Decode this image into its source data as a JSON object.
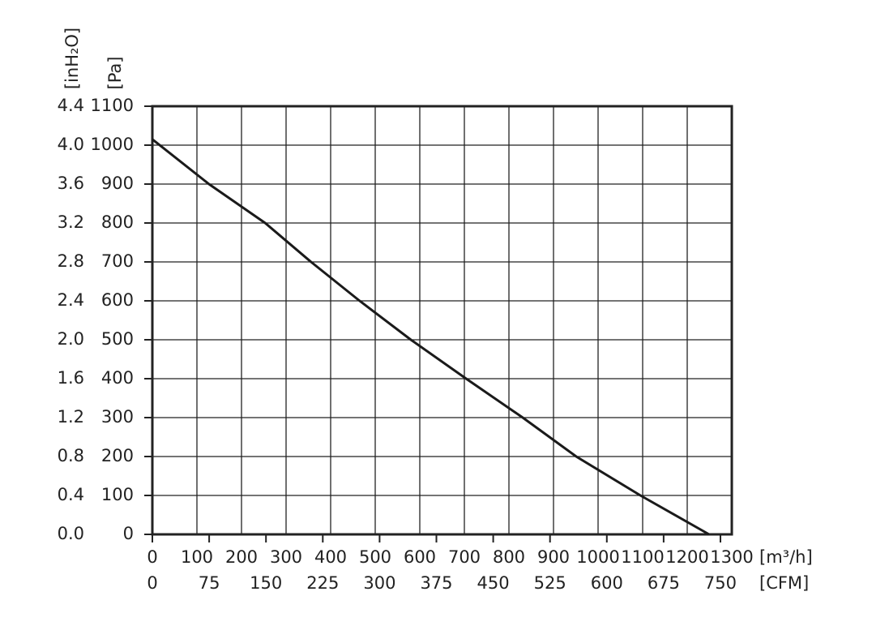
{
  "chart_data": {
    "type": "line",
    "x": [
      0,
      127,
      253,
      356,
      465,
      580,
      704,
      831,
      951,
      1095,
      1249
    ],
    "series": [
      {
        "color": "#1a1a1a",
        "values": [
          1015,
          900,
          800,
          700,
          600,
          500,
          400,
          300,
          200,
          100,
          0
        ]
      }
    ],
    "xlim": [
      0,
      1300
    ],
    "xticks": [
      0,
      100,
      200,
      300,
      400,
      500,
      600,
      700,
      800,
      900,
      1000,
      1100,
      1200,
      1300
    ],
    "xlabel": "[m³/h]",
    "x2lim": [
      0,
      765
    ],
    "x2ticks": [
      0,
      75,
      150,
      225,
      300,
      375,
      450,
      525,
      600,
      675,
      750
    ],
    "x2label": "[CFM]",
    "ylim": [
      0,
      1100
    ],
    "yticks": [
      0,
      100,
      200,
      300,
      400,
      500,
      600,
      700,
      800,
      900,
      1000,
      1100
    ],
    "ylabel": "[Pa]",
    "y2lim": [
      0,
      4.4
    ],
    "y2ticks": [
      {
        "value": 0,
        "label": "0.0"
      },
      0.4,
      0.8,
      1.2,
      1.6,
      {
        "value": 2,
        "label": "2.0"
      },
      2.4,
      2.8,
      3.2,
      3.6,
      {
        "value": 4,
        "label": "4.0"
      },
      4.4
    ],
    "y2label": "[inH₂O]",
    "grid": true
  }
}
